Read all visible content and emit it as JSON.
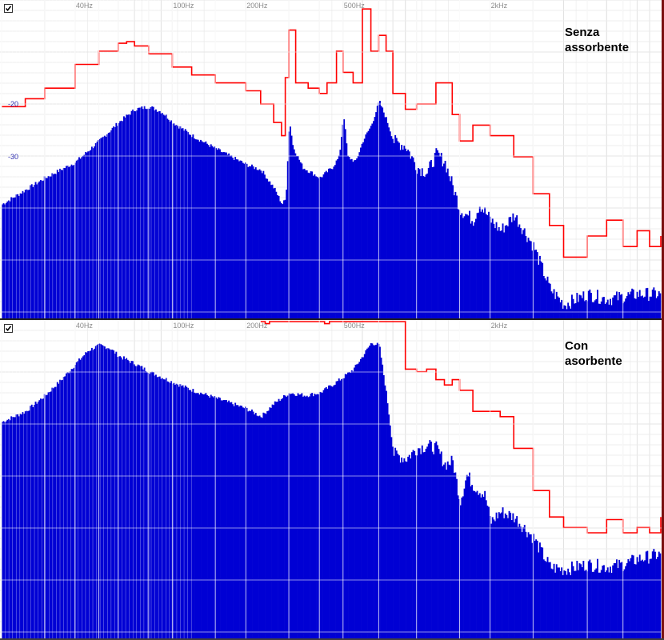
{
  "chart_data": [
    {
      "type": "area",
      "title": "",
      "annotation": [
        "Senza",
        "assorbente"
      ],
      "xscale": "log",
      "xlabel": "",
      "ylabel": "",
      "x_ticks": [
        "40Hz",
        "100Hz",
        "200Hz",
        "500Hz",
        "2kHz"
      ],
      "x_tick_values": [
        40,
        100,
        200,
        500,
        2000
      ],
      "y_ticks": [
        "-20",
        "-30"
      ],
      "grid": true,
      "series": [
        {
          "style": "filled spectrum",
          "color": "#0000d4",
          "points": [
            [
              20,
              -39
            ],
            [
              30,
              -34
            ],
            [
              40,
              -31
            ],
            [
              50,
              -27
            ],
            [
              60,
              -23.5
            ],
            [
              70,
              -21
            ],
            [
              80,
              -20.5
            ],
            [
              90,
              -21.5
            ],
            [
              100,
              -23.5
            ],
            [
              120,
              -26
            ],
            [
              150,
              -28.5
            ],
            [
              200,
              -31.5
            ],
            [
              230,
              -32.5
            ],
            [
              260,
              -36
            ],
            [
              280,
              -39
            ],
            [
              290,
              -38
            ],
            [
              300,
              -23
            ],
            [
              310,
              -28
            ],
            [
              340,
              -32
            ],
            [
              400,
              -34
            ],
            [
              450,
              -32
            ],
            [
              480,
              -30
            ],
            [
              500,
              -22
            ],
            [
              520,
              -30
            ],
            [
              560,
              -31
            ],
            [
              600,
              -27
            ],
            [
              650,
              -24
            ],
            [
              700,
              -19.5
            ],
            [
              750,
              -23
            ],
            [
              800,
              -27
            ],
            [
              900,
              -28
            ],
            [
              1000,
              -32
            ],
            [
              1100,
              -33
            ],
            [
              1200,
              -29.5
            ],
            [
              1300,
              -31
            ],
            [
              1500,
              -40
            ],
            [
              1700,
              -42
            ],
            [
              1800,
              -39
            ],
            [
              2000,
              -42
            ],
            [
              2200,
              -44
            ],
            [
              2500,
              -41
            ],
            [
              3000,
              -47
            ],
            [
              3500,
              -55
            ],
            [
              4000,
              -58
            ],
            [
              5000,
              -56
            ],
            [
              6000,
              -57
            ],
            [
              8000,
              -56
            ],
            [
              10000,
              -56
            ]
          ]
        },
        {
          "style": "step line",
          "color": "#ff0000",
          "points": [
            [
              20,
              -20.5
            ],
            [
              25,
              -19
            ],
            [
              30,
              -17
            ],
            [
              40,
              -12.5
            ],
            [
              50,
              -10
            ],
            [
              60,
              -8.5
            ],
            [
              65,
              -8.2
            ],
            [
              70,
              -9
            ],
            [
              80,
              -10.5
            ],
            [
              100,
              -13
            ],
            [
              120,
              -14.5
            ],
            [
              150,
              -16
            ],
            [
              200,
              -17.5
            ],
            [
              230,
              -20
            ],
            [
              260,
              -23.5
            ],
            [
              280,
              -26
            ],
            [
              290,
              -15
            ],
            [
              300,
              -6
            ],
            [
              320,
              -16
            ],
            [
              360,
              -17
            ],
            [
              400,
              -18
            ],
            [
              430,
              -16
            ],
            [
              470,
              -10
            ],
            [
              500,
              -14
            ],
            [
              550,
              -16
            ],
            [
              600,
              -2
            ],
            [
              650,
              -10
            ],
            [
              700,
              -7
            ],
            [
              750,
              -10
            ],
            [
              800,
              -18
            ],
            [
              900,
              -21
            ],
            [
              1000,
              -20
            ],
            [
              1200,
              -16
            ],
            [
              1400,
              -22
            ],
            [
              1500,
              -27
            ],
            [
              1700,
              -24
            ],
            [
              2000,
              -26
            ],
            [
              2500,
              -30
            ],
            [
              3000,
              -37
            ],
            [
              3500,
              -43
            ],
            [
              4000,
              -49
            ],
            [
              5000,
              -45
            ],
            [
              6000,
              -42
            ],
            [
              7000,
              -47
            ],
            [
              8000,
              -44
            ],
            [
              9000,
              -47
            ],
            [
              10000,
              -45
            ]
          ]
        }
      ]
    },
    {
      "type": "area",
      "title": "",
      "annotation": [
        "Con",
        "asorbente"
      ],
      "xscale": "log",
      "xlabel": "",
      "ylabel": "",
      "x_ticks": [
        "40Hz",
        "100Hz",
        "200Hz",
        "500Hz",
        "2kHz"
      ],
      "x_tick_values": [
        40,
        100,
        200,
        500,
        2000
      ],
      "y_ticks": [],
      "grid": true,
      "series": [
        {
          "style": "filled spectrum",
          "color": "#0000d4",
          "points": [
            [
              20,
              -19
            ],
            [
              25,
              -17
            ],
            [
              30,
              -14
            ],
            [
              35,
              -11
            ],
            [
              40,
              -8
            ],
            [
              45,
              -5.5
            ],
            [
              50,
              -4.5
            ],
            [
              55,
              -5
            ],
            [
              60,
              -6.5
            ],
            [
              70,
              -8
            ],
            [
              80,
              -9.5
            ],
            [
              100,
              -11.5
            ],
            [
              120,
              -13
            ],
            [
              150,
              -14.5
            ],
            [
              200,
              -16.5
            ],
            [
              230,
              -18
            ],
            [
              260,
              -15.5
            ],
            [
              300,
              -13.5
            ],
            [
              350,
              -14
            ],
            [
              400,
              -13.5
            ],
            [
              450,
              -12
            ],
            [
              500,
              -10.5
            ],
            [
              550,
              -9
            ],
            [
              600,
              -6.5
            ],
            [
              650,
              -4
            ],
            [
              700,
              -4.5
            ],
            [
              750,
              -14
            ],
            [
              800,
              -25
            ],
            [
              900,
              -26
            ],
            [
              1000,
              -24
            ],
            [
              1100,
              -23.5
            ],
            [
              1200,
              -24
            ],
            [
              1300,
              -27
            ],
            [
              1400,
              -26.5
            ],
            [
              1500,
              -34
            ],
            [
              1600,
              -29
            ],
            [
              1700,
              -31
            ],
            [
              1900,
              -33
            ],
            [
              2000,
              -38
            ],
            [
              2200,
              -36
            ],
            [
              2500,
              -37
            ],
            [
              3000,
              -41
            ],
            [
              3500,
              -46.5
            ],
            [
              4000,
              -47
            ],
            [
              5000,
              -46
            ],
            [
              6000,
              -46.5
            ],
            [
              7000,
              -46
            ],
            [
              8000,
              -45
            ],
            [
              10000,
              -44
            ]
          ]
        },
        {
          "style": "step line",
          "color": "#ff0000",
          "points": [
            [
              230,
              0
            ],
            [
              240,
              -0.4
            ],
            [
              250,
              0
            ],
            [
              400,
              0
            ],
            [
              420,
              -0.4
            ],
            [
              440,
              0
            ],
            [
              800,
              0
            ],
            [
              900,
              -9
            ],
            [
              1000,
              -9.5
            ],
            [
              1100,
              -9
            ],
            [
              1200,
              -11
            ],
            [
              1300,
              -12
            ],
            [
              1400,
              -11
            ],
            [
              1500,
              -13
            ],
            [
              1700,
              -17
            ],
            [
              2000,
              -17
            ],
            [
              2200,
              -18
            ],
            [
              2500,
              -24
            ],
            [
              3000,
              -32
            ],
            [
              3500,
              -37
            ],
            [
              4000,
              -39
            ],
            [
              5000,
              -40
            ],
            [
              6000,
              -37.5
            ],
            [
              7000,
              -40
            ],
            [
              8000,
              -39
            ],
            [
              9000,
              -40
            ],
            [
              10000,
              -37
            ]
          ]
        }
      ]
    }
  ]
}
